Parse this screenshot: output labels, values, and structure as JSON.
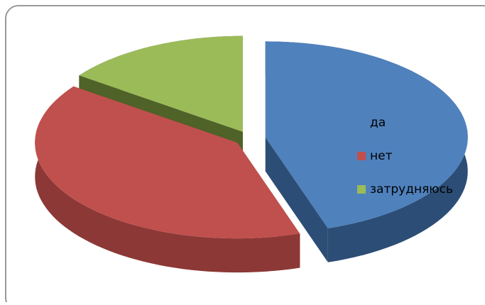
{
  "chart_data": {
    "type": "pie3d",
    "categories": [
      "да",
      "нет",
      "затрудняюсь"
    ],
    "values": [
      45,
      40,
      15
    ],
    "colors": [
      "#4f81bd",
      "#c0504d",
      "#9bbb59"
    ],
    "side_colors": [
      "#2c4d75",
      "#8c3836",
      "#4f6228"
    ],
    "legend": "right"
  }
}
